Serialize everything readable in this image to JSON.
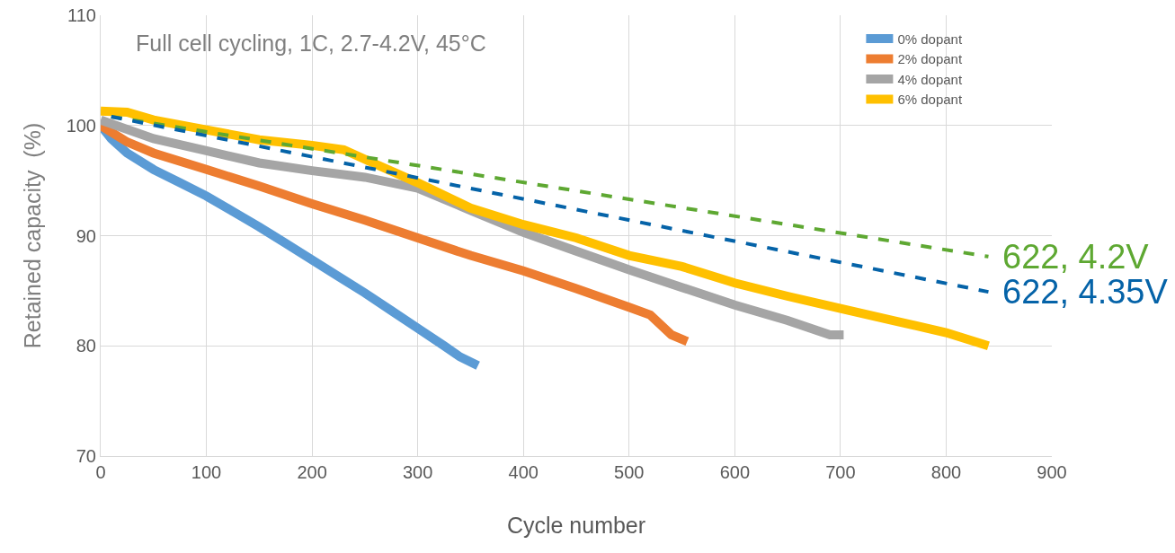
{
  "chart_data": {
    "type": "line",
    "xlabel": "Cycle number",
    "ylabel": "Retained capacity  (%)",
    "annotations": [
      "Full cell cycling, 1C, 2.7-4.2V, 45°C"
    ],
    "xlim": [
      0,
      900
    ],
    "xticks": [
      0,
      100,
      200,
      300,
      400,
      500,
      600,
      700,
      800,
      900
    ],
    "ylim": [
      70,
      110
    ],
    "yticks": [
      70,
      80,
      90,
      100,
      110
    ],
    "grid": true,
    "legend": "top right",
    "series": [
      {
        "name": "0% dopant",
        "color": "#5b9bd5",
        "line_style": "solid",
        "x": [
          0,
          10,
          25,
          50,
          75,
          100,
          125,
          150,
          175,
          200,
          225,
          250,
          275,
          300,
          325,
          340,
          357
        ],
        "values": [
          100,
          98.8,
          97.5,
          96,
          94.8,
          93.6,
          92.2,
          90.8,
          89.3,
          87.8,
          86.3,
          84.8,
          83.2,
          81.6,
          80,
          79,
          78.2
        ]
      },
      {
        "name": "2% dopant",
        "color": "#ed7d31",
        "line_style": "solid",
        "x": [
          0,
          25,
          50,
          100,
          150,
          200,
          250,
          300,
          350,
          400,
          450,
          500,
          520,
          540,
          555
        ],
        "values": [
          100,
          98.5,
          97.5,
          96,
          94.5,
          92.9,
          91.4,
          89.8,
          88.2,
          86.8,
          85.2,
          83.5,
          82.8,
          81,
          80.4
        ]
      },
      {
        "name": "4% dopant",
        "color": "#a5a5a5",
        "line_style": "solid",
        "x": [
          0,
          50,
          100,
          150,
          200,
          250,
          300,
          350,
          400,
          450,
          500,
          550,
          600,
          650,
          690,
          703
        ],
        "values": [
          100.5,
          98.8,
          97.7,
          96.6,
          95.9,
          95.3,
          94.3,
          92.3,
          90.3,
          88.6,
          86.9,
          85.3,
          83.7,
          82.3,
          81,
          81
        ]
      },
      {
        "name": "6% dopant",
        "color": "#ffc000",
        "line_style": "solid",
        "x": [
          0,
          25,
          50,
          100,
          150,
          200,
          230,
          260,
          300,
          350,
          400,
          450,
          500,
          550,
          600,
          650,
          700,
          750,
          800,
          840
        ],
        "values": [
          101.3,
          101.2,
          100.5,
          99.6,
          98.7,
          98.2,
          97.8,
          96.5,
          94.8,
          92.5,
          91,
          89.8,
          88.2,
          87.2,
          85.7,
          84.5,
          83.4,
          82.3,
          81.2,
          80
        ]
      },
      {
        "name": "622, 4.2V",
        "color": "#5ea832",
        "line_style": "dashed",
        "x": [
          10,
          840
        ],
        "values": [
          100.8,
          88.1
        ]
      },
      {
        "name": "622, 4.35V",
        "color": "#0563a8",
        "line_style": "dashed",
        "x": [
          10,
          840
        ],
        "values": [
          100.8,
          84.9
        ]
      }
    ]
  }
}
